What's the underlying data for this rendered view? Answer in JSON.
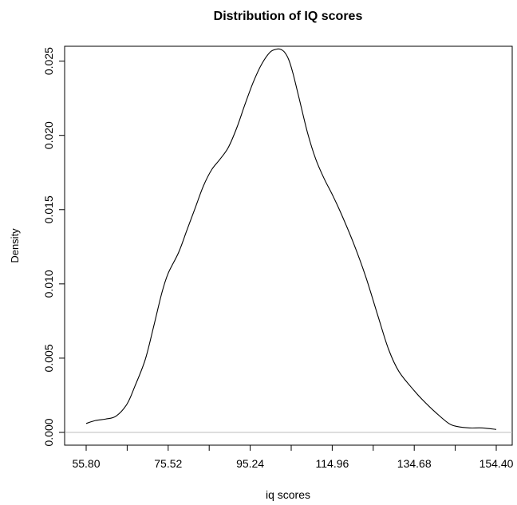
{
  "chart_data": {
    "type": "line",
    "title": "Distribution of IQ scores",
    "xlabel": "iq scores",
    "ylabel": "Density",
    "xlim": [
      55.8,
      154.4
    ],
    "ylim": [
      0,
      0.026
    ],
    "x_ticks": [
      "55.80",
      "75.52",
      "95.24",
      "114.96",
      "134.68",
      "154.40"
    ],
    "x_tick_values": [
      55.8,
      75.52,
      95.24,
      114.96,
      134.68,
      154.4
    ],
    "x_minor_ticks": [
      65.66,
      85.38,
      105.1,
      124.82,
      144.54
    ],
    "y_ticks": [
      "0.000",
      "0.005",
      "0.010",
      "0.015",
      "0.020",
      "0.025"
    ],
    "y_tick_values": [
      0,
      0.005,
      0.01,
      0.015,
      0.02,
      0.025
    ],
    "baseline": 0,
    "grid": false,
    "legend": "none",
    "series": [
      {
        "x": [
          55.8,
          58.0,
          60.5,
          63.0,
          65.6,
          67.5,
          70.0,
          72.0,
          74.0,
          75.5,
          78.0,
          80.0,
          82.0,
          84.0,
          86.0,
          88.0,
          90.0,
          92.0,
          94.0,
          96.0,
          98.0,
          100.0,
          101.5,
          102.5,
          103.5,
          104.5,
          105.5,
          107.0,
          109.0,
          111.0,
          113.0,
          115.0,
          117.0,
          120.0,
          123.0,
          126.0,
          128.5,
          131.0,
          134.7,
          137.0,
          140.0,
          143.0,
          145.0,
          148.0,
          151.0,
          154.4
        ],
        "y": [
          0.0006,
          0.0008,
          0.0009,
          0.0011,
          0.0019,
          0.0031,
          0.0049,
          0.0071,
          0.0094,
          0.0107,
          0.0121,
          0.0136,
          0.0151,
          0.0166,
          0.0177,
          0.0184,
          0.0192,
          0.0205,
          0.0221,
          0.0236,
          0.0248,
          0.0256,
          0.0258,
          0.0258,
          0.0256,
          0.0251,
          0.0242,
          0.0225,
          0.0202,
          0.0184,
          0.0171,
          0.016,
          0.0148,
          0.0128,
          0.0105,
          0.0078,
          0.0056,
          0.0041,
          0.0028,
          0.0021,
          0.0013,
          0.0006,
          0.0004,
          0.0003,
          0.0003,
          0.0002
        ]
      }
    ]
  }
}
